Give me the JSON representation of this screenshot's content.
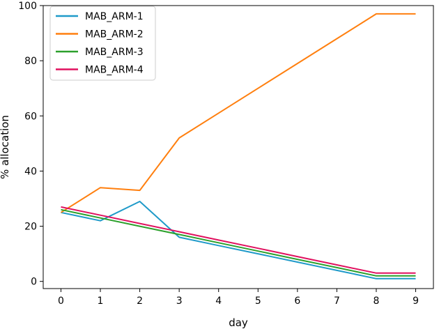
{
  "chart_data": {
    "type": "line",
    "title": "",
    "xlabel": "day",
    "ylabel": "% allocation",
    "x": [
      0,
      1,
      2,
      3,
      4,
      5,
      6,
      7,
      8,
      9
    ],
    "xlim": [
      -0.45,
      9.45
    ],
    "ylim": [
      -2.6,
      100
    ],
    "xticks": [
      0,
      1,
      2,
      3,
      4,
      5,
      6,
      7,
      8,
      9
    ],
    "yticks": [
      0,
      20,
      40,
      60,
      80,
      100
    ],
    "grid": false,
    "legend_position": "top-left",
    "series": [
      {
        "name": "MAB_ARM-1",
        "color": "#1f9ac9",
        "values": [
          25,
          22,
          29,
          16,
          13,
          10,
          7,
          4,
          1,
          1
        ]
      },
      {
        "name": "MAB_ARM-2",
        "color": "#ff7f0e",
        "values": [
          25,
          34,
          33,
          52,
          61,
          70,
          79,
          88,
          97,
          97
        ]
      },
      {
        "name": "MAB_ARM-3",
        "color": "#2ca02c",
        "values": [
          26,
          23,
          20,
          17,
          14,
          11,
          8,
          5,
          2,
          2
        ]
      },
      {
        "name": "MAB_ARM-4",
        "color": "#e0115f",
        "values": [
          27,
          24,
          21,
          18,
          15,
          12,
          9,
          6,
          3,
          3
        ]
      }
    ]
  }
}
